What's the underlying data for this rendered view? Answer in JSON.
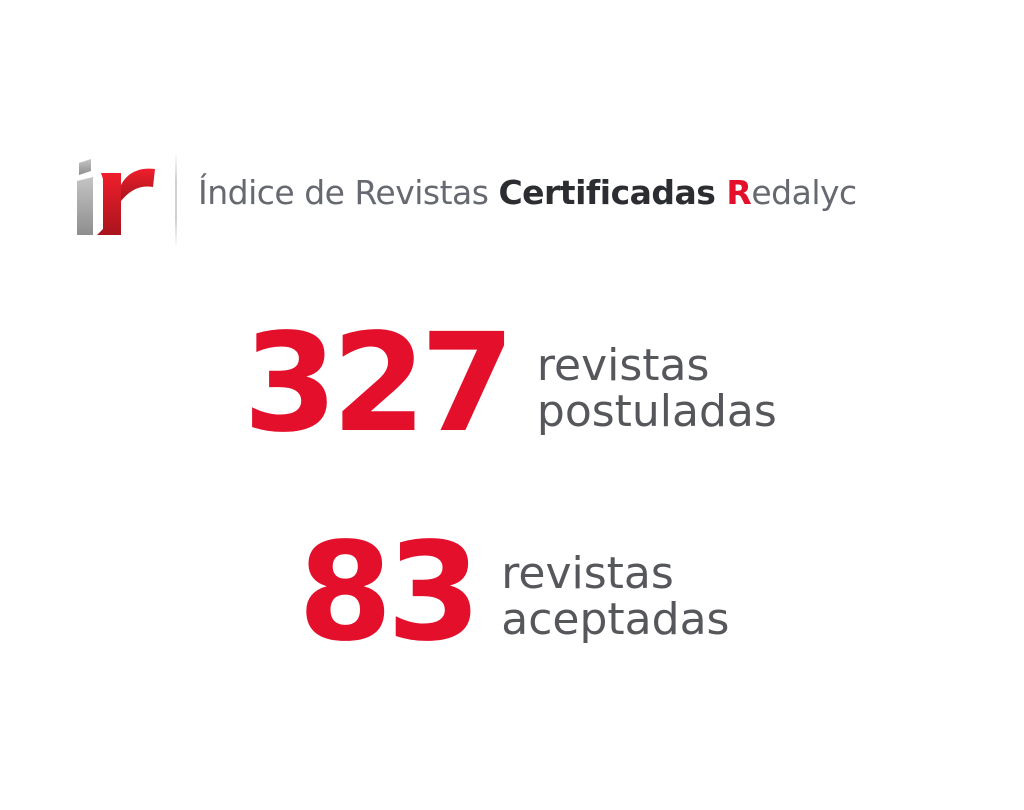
{
  "brand": {
    "logo_icon": "ir-logo-icon",
    "logo_text": "ir",
    "title_part1": "Índice de Revistas ",
    "title_bold": "Certificadas ",
    "title_red_letter": "R",
    "title_end": "edalyc"
  },
  "stats": [
    {
      "number": "327",
      "label_line1": "revistas",
      "label_line2": "postuladas"
    },
    {
      "number": "83",
      "label_line1": "revistas",
      "label_line2": "aceptadas"
    }
  ],
  "colors": {
    "accent_red": "#e30f2b",
    "text_gray": "#55575b",
    "title_gray": "#666a70",
    "title_dark": "#2b2d30",
    "logo_gray": "#a8a8a8"
  }
}
